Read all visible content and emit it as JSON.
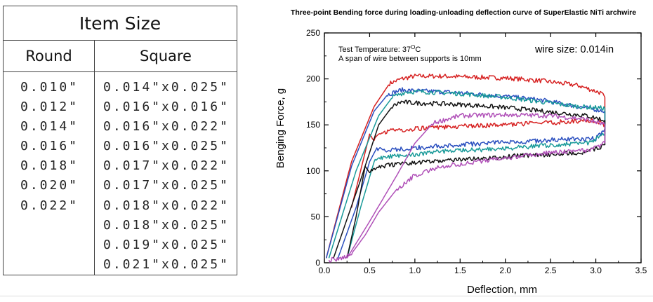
{
  "size_table": {
    "title": "Item Size",
    "columns": [
      "Round",
      "Square"
    ],
    "round": [
      "0.010\"",
      "0.012\"",
      "0.014\"",
      "0.016\"",
      "0.018\"",
      "0.020\"",
      "0.022\""
    ],
    "square": [
      "0.014\"x0.025\"",
      "0.016\"x0.016\"",
      "0.016\"x0.022\"",
      "0.016\"x0.025\"",
      "0.017\"x0.022\"",
      "0.017\"x0.025\"",
      "0.018\"x0.022\"",
      "0.018\"x0.025\"",
      "0.019\"x0.025\"",
      "0.021\"x0.025\""
    ]
  },
  "chart_data": {
    "type": "line",
    "title": "Three-point Bending force during loading-unloading deflection curve of  SuperElastic NiTi archwire",
    "xlabel": "Deflection,  mm",
    "ylabel": "Benging Force,  g",
    "xlim": [
      0.0,
      3.5
    ],
    "ylim": [
      0,
      250
    ],
    "xticks": [
      "0.0",
      "0.5",
      "1.0",
      "1.5",
      "2.0",
      "2.5",
      "3.0",
      "3.5"
    ],
    "yticks": [
      "0",
      "50",
      "100",
      "150",
      "200",
      "250"
    ],
    "grid": false,
    "legend": "none",
    "annotations": {
      "temperature_prefix": "Test Temperature: 37",
      "temperature_unit": "C",
      "degree_symbol": "O",
      "span": "A span of wire between supports is 10mm",
      "wire_size": "wire size: 0.014in"
    },
    "series": [
      {
        "color": "#d62020",
        "loading_x": [
          0.02,
          0.3,
          0.55,
          0.72,
          0.85,
          1.0,
          1.3,
          1.6,
          2.0,
          2.4,
          2.8,
          3.05,
          3.1
        ],
        "loading_y": [
          5,
          110,
          170,
          195,
          200,
          203,
          203,
          202,
          201,
          198,
          193,
          185,
          180
        ],
        "unloading_x": [
          3.1,
          3.0,
          2.8,
          2.4,
          2.0,
          1.6,
          1.2,
          0.9,
          0.7,
          0.6,
          0.55,
          0.5,
          0.45,
          0.3
        ],
        "unloading_y": [
          150,
          155,
          154,
          152,
          150,
          149,
          147,
          145,
          143,
          140,
          135,
          140,
          120,
          60
        ]
      },
      {
        "color": "#2a4fbf",
        "loading_x": [
          0.02,
          0.3,
          0.55,
          0.7,
          0.85,
          1.0,
          1.3,
          1.6,
          2.0,
          2.4,
          2.8,
          3.1
        ],
        "loading_y": [
          5,
          105,
          165,
          183,
          188,
          187,
          186,
          184,
          181,
          177,
          170,
          165
        ],
        "unloading_x": [
          3.1,
          3.0,
          2.6,
          2.2,
          1.8,
          1.4,
          1.0,
          0.8,
          0.65,
          0.58,
          0.5,
          0.35,
          0.15
        ],
        "unloading_y": [
          145,
          135,
          134,
          132,
          130,
          128,
          125,
          123,
          122,
          125,
          110,
          60,
          5
        ]
      },
      {
        "color": "#199a99",
        "loading_x": [
          0.05,
          0.35,
          0.6,
          0.75,
          0.9,
          1.1,
          1.5,
          2.0,
          2.4,
          2.8,
          3.1
        ],
        "loading_y": [
          5,
          100,
          160,
          180,
          186,
          186,
          184,
          180,
          175,
          170,
          168
        ],
        "unloading_x": [
          3.1,
          2.9,
          2.5,
          2.1,
          1.7,
          1.3,
          1.0,
          0.8,
          0.65,
          0.55,
          0.4,
          0.25
        ],
        "unloading_y": [
          140,
          130,
          128,
          125,
          123,
          121,
          118,
          116,
          115,
          110,
          60,
          5
        ]
      },
      {
        "color": "#111111",
        "loading_x": [
          0.1,
          0.4,
          0.6,
          0.75,
          0.85,
          0.95,
          1.3,
          1.7,
          2.1,
          2.5,
          2.9,
          3.1
        ],
        "loading_y": [
          5,
          90,
          150,
          170,
          175,
          174,
          173,
          171,
          168,
          164,
          160,
          155
        ],
        "unloading_x": [
          3.1,
          2.9,
          2.5,
          2.1,
          1.7,
          1.3,
          0.9,
          0.7,
          0.55,
          0.5,
          0.45,
          0.35,
          0.25
        ],
        "unloading_y": [
          128,
          120,
          118,
          116,
          113,
          111,
          108,
          106,
          102,
          98,
          105,
          50,
          5
        ]
      },
      {
        "color": "#b050b8",
        "loading_x": [
          0.25,
          0.5,
          0.8,
          1.0,
          1.2,
          1.5,
          2.0,
          2.5,
          2.9,
          3.1
        ],
        "loading_y": [
          5,
          45,
          95,
          130,
          152,
          160,
          161,
          160,
          156,
          150
        ],
        "unloading_x": [
          3.1,
          2.9,
          2.5,
          2.1,
          1.7,
          1.3,
          1.0,
          0.8,
          0.6,
          0.45,
          0.3,
          0.2,
          0.05
        ],
        "unloading_y": [
          130,
          122,
          120,
          115,
          110,
          105,
          95,
          80,
          55,
          30,
          10,
          5,
          3
        ]
      }
    ]
  }
}
